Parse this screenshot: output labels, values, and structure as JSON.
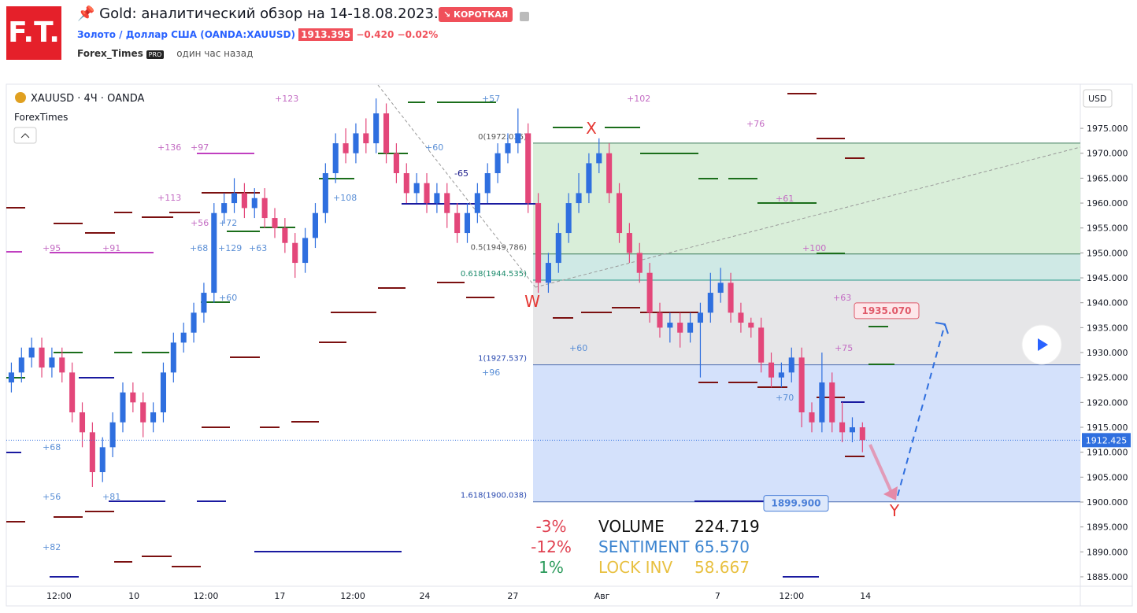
{
  "header": {
    "logo": "F.T.",
    "title": "Gold: аналитический обзор на 14-18.08.2023.",
    "badge": "↘ КОРОТКАЯ",
    "symbol_name": "Золото / Доллар США",
    "symbol_code": "(OANDA:XAUUSD)",
    "price": "1913.395",
    "change": "−0.420",
    "change_pct": "−0.02%",
    "author": "Forex_Times",
    "author_badge": "PRO",
    "time": "один час назад"
  },
  "chart_data": {
    "type": "candlestick",
    "legend": "XAUUSD · 4Ч · OANDA",
    "indicator": "ForexTimes",
    "currency": "USD",
    "up_color": "#2f6fdf",
    "down_color": "#e3477a",
    "candles": [
      [
        1924,
        1928,
        1922,
        1926
      ],
      [
        1926,
        1931,
        1924,
        1929
      ],
      [
        1929,
        1933,
        1927,
        1931
      ],
      [
        1931,
        1933,
        1925,
        1927
      ],
      [
        1927,
        1931,
        1925,
        1929
      ],
      [
        1929,
        1931,
        1924,
        1926
      ],
      [
        1926,
        1928,
        1916,
        1918
      ],
      [
        1918,
        1920,
        1911,
        1914
      ],
      [
        1914,
        1916,
        1903,
        1906
      ],
      [
        1906,
        1913,
        1904,
        1911
      ],
      [
        1911,
        1918,
        1909,
        1916
      ],
      [
        1916,
        1924,
        1914,
        1922
      ],
      [
        1922,
        1924,
        1918,
        1920
      ],
      [
        1920,
        1922,
        1913,
        1916
      ],
      [
        1916,
        1920,
        1914,
        1918
      ],
      [
        1918,
        1928,
        1916,
        1926
      ],
      [
        1926,
        1934,
        1924,
        1932
      ],
      [
        1932,
        1936,
        1930,
        1934
      ],
      [
        1934,
        1940,
        1932,
        1938
      ],
      [
        1938,
        1944,
        1936,
        1942
      ],
      [
        1942,
        1960,
        1940,
        1958
      ],
      [
        1958,
        1962,
        1956,
        1960
      ],
      [
        1960,
        1965,
        1958,
        1962
      ],
      [
        1962,
        1964,
        1957,
        1959
      ],
      [
        1959,
        1963,
        1957,
        1961
      ],
      [
        1961,
        1963,
        1955,
        1957
      ],
      [
        1957,
        1959,
        1953,
        1955
      ],
      [
        1955,
        1957,
        1950,
        1952
      ],
      [
        1952,
        1954,
        1945,
        1948
      ],
      [
        1948,
        1955,
        1946,
        1953
      ],
      [
        1953,
        1960,
        1951,
        1958
      ],
      [
        1958,
        1968,
        1956,
        1966
      ],
      [
        1966,
        1974,
        1964,
        1972
      ],
      [
        1972,
        1975,
        1968,
        1970
      ],
      [
        1970,
        1976,
        1968,
        1974
      ],
      [
        1974,
        1977,
        1970,
        1972
      ],
      [
        1972,
        1981,
        1970,
        1978
      ],
      [
        1978,
        1980,
        1968,
        1970
      ],
      [
        1970,
        1972,
        1964,
        1966
      ],
      [
        1966,
        1968,
        1960,
        1962
      ],
      [
        1962,
        1966,
        1960,
        1964
      ],
      [
        1964,
        1966,
        1958,
        1960
      ],
      [
        1960,
        1964,
        1958,
        1962
      ],
      [
        1962,
        1964,
        1955,
        1958
      ],
      [
        1958,
        1960,
        1952,
        1954
      ],
      [
        1954,
        1960,
        1952,
        1958
      ],
      [
        1958,
        1964,
        1956,
        1962
      ],
      [
        1962,
        1968,
        1960,
        1966
      ],
      [
        1966,
        1972,
        1964,
        1970
      ],
      [
        1970,
        1974,
        1968,
        1972
      ],
      [
        1972,
        1979,
        1970,
        1974
      ],
      [
        1974,
        1976,
        1958,
        1960
      ],
      [
        1960,
        1962,
        1942,
        1944
      ],
      [
        1944,
        1950,
        1942,
        1948
      ],
      [
        1948,
        1956,
        1946,
        1954
      ],
      [
        1954,
        1962,
        1952,
        1960
      ],
      [
        1960,
        1966,
        1958,
        1962
      ],
      [
        1962,
        1970,
        1960,
        1968
      ],
      [
        1968,
        1973,
        1966,
        1970
      ],
      [
        1970,
        1972,
        1960,
        1962
      ],
      [
        1962,
        1964,
        1952,
        1954
      ],
      [
        1954,
        1956,
        1948,
        1950
      ],
      [
        1950,
        1952,
        1944,
        1946
      ],
      [
        1946,
        1948,
        1936,
        1938
      ],
      [
        1938,
        1940,
        1933,
        1935
      ],
      [
        1935,
        1938,
        1932,
        1936
      ],
      [
        1936,
        1938,
        1931,
        1934
      ],
      [
        1934,
        1938,
        1932,
        1936
      ],
      [
        1936,
        1940,
        1925,
        1938
      ],
      [
        1938,
        1946,
        1936,
        1942
      ],
      [
        1942,
        1947,
        1940,
        1944
      ],
      [
        1944,
        1946,
        1936,
        1938
      ],
      [
        1938,
        1940,
        1934,
        1936
      ],
      [
        1936,
        1937,
        1933,
        1935
      ],
      [
        1935,
        1937,
        1926,
        1928
      ],
      [
        1928,
        1930,
        1923,
        1925
      ],
      [
        1925,
        1928,
        1923,
        1926
      ],
      [
        1926,
        1931,
        1924,
        1929
      ],
      [
        1929,
        1931,
        1915,
        1918
      ],
      [
        1918,
        1920,
        1914,
        1916
      ],
      [
        1916,
        1930,
        1914,
        1924
      ],
      [
        1924,
        1926,
        1914,
        1916
      ],
      [
        1916,
        1920,
        1912,
        1914
      ],
      [
        1914,
        1917,
        1912,
        1915
      ],
      [
        1915,
        1916,
        1910,
        1912.425
      ]
    ],
    "xlim": [
      -0.5,
      105.5
    ],
    "xticks": [
      {
        "value": 4.7,
        "label": "12:00"
      },
      {
        "value": 12.1,
        "label": "10"
      },
      {
        "value": 19.2,
        "label": "12:00"
      },
      {
        "value": 26.5,
        "label": "17"
      },
      {
        "value": 33.7,
        "label": "12:00"
      },
      {
        "value": 40.8,
        "label": "24"
      },
      {
        "value": 49.5,
        "label": "27"
      },
      {
        "value": 58.3,
        "label": "Авг"
      },
      {
        "value": 69.7,
        "label": "7"
      },
      {
        "value": 77,
        "label": "12:00"
      },
      {
        "value": 84.3,
        "label": "14"
      }
    ],
    "ylim": [
      1883.1,
      1983.7
    ],
    "yticks": [
      {
        "value": 1885,
        "label": "1885.000"
      },
      {
        "value": 1890,
        "label": "1890.000"
      },
      {
        "value": 1895,
        "label": "1895.000"
      },
      {
        "value": 1900,
        "label": "1900.000"
      },
      {
        "value": 1905,
        "label": "1905.000"
      },
      {
        "value": 1910,
        "label": "1910.000"
      },
      {
        "value": 1915,
        "label": "1915.000"
      },
      {
        "value": 1920,
        "label": "1920.000"
      },
      {
        "value": 1925,
        "label": "1925.000"
      },
      {
        "value": 1930,
        "label": "1930.000"
      },
      {
        "value": 1935,
        "label": "1935.000"
      },
      {
        "value": 1940,
        "label": "1940.000"
      },
      {
        "value": 1945,
        "label": "1945.000"
      },
      {
        "value": 1950,
        "label": "1950.000"
      },
      {
        "value": 1955,
        "label": "1955.000"
      },
      {
        "value": 1960,
        "label": "1960.000"
      },
      {
        "value": 1965,
        "label": "1965.000"
      },
      {
        "value": 1970,
        "label": "1970.000"
      },
      {
        "value": 1975,
        "label": "1975.000"
      }
    ],
    "last_price": 1912.425,
    "fib_levels": [
      {
        "value": 1972.035,
        "label": "0(1972.035)"
      },
      {
        "value": 1949.786,
        "label": "0.5(1949.786)"
      },
      {
        "value": 1944.535,
        "label": "0.618(1944.535)"
      },
      {
        "value": 1927.537,
        "label": "1(1927.537)"
      },
      {
        "value": 1900.038,
        "label": "1.618(1900.038)"
      }
    ],
    "fib_fills": [
      "#d9eed9",
      "#cfe9e5",
      "#e6e6e8",
      "#d4e1fb"
    ],
    "price_labels": [
      {
        "value": 1935.07,
        "label": "1935.070",
        "color": "#e05a6a"
      },
      {
        "value": 1899.9,
        "label": "1899.900",
        "color": "#4a7fd8"
      }
    ],
    "pattern_labels": [
      "W",
      "X",
      "Y"
    ],
    "annotations": [
      {
        "text": "+123",
        "color": "#c36bc3"
      },
      {
        "text": "+136",
        "color": "#c36bc3"
      },
      {
        "text": "+97",
        "color": "#c36bc3"
      },
      {
        "text": "+113",
        "color": "#c36bc3"
      },
      {
        "text": "+56",
        "color": "#c36bc3"
      },
      {
        "text": "+95",
        "color": "#c36bc3"
      },
      {
        "text": "+91",
        "color": "#c36bc3"
      },
      {
        "text": "+68",
        "color": "#5b8fd6"
      },
      {
        "text": "+129",
        "color": "#5b8fd6"
      },
      {
        "text": "+63",
        "color": "#5b8fd6"
      },
      {
        "text": "+72",
        "color": "#5b8fd6"
      },
      {
        "text": "+108",
        "color": "#5b8fd6"
      },
      {
        "text": "+60",
        "color": "#5b8fd6"
      },
      {
        "text": "+57",
        "color": "#5b8fd6"
      },
      {
        "text": "-65",
        "color": "#1a1a8a"
      },
      {
        "text": "+102",
        "color": "#c36bc3"
      },
      {
        "text": "+76",
        "color": "#c36bc3"
      },
      {
        "text": "+61",
        "color": "#c36bc3"
      },
      {
        "text": "+100",
        "color": "#c36bc3"
      },
      {
        "text": "+63",
        "color": "#c36bc3"
      },
      {
        "text": "+75",
        "color": "#c36bc3"
      },
      {
        "text": "+60",
        "color": "#5b8fd6"
      },
      {
        "text": "+96",
        "color": "#5b8fd6"
      },
      {
        "text": "+70",
        "color": "#5b8fd6"
      },
      {
        "text": "+68",
        "color": "#5b8fd6"
      },
      {
        "text": "+56",
        "color": "#5b8fd6"
      },
      {
        "text": "+81",
        "color": "#5b8fd6"
      },
      {
        "text": "+82",
        "color": "#5b8fd6"
      },
      {
        "text": "+60",
        "color": "#5b8fd6"
      }
    ],
    "stats": [
      {
        "change": "-3%",
        "name": "VOLUME",
        "value": "224.719",
        "change_color": "#e04050",
        "color": "#111111"
      },
      {
        "change": "-12%",
        "name": "SENTIMENT",
        "value": "65.570",
        "change_color": "#e04050",
        "color": "#3b84d0"
      },
      {
        "change": "1%",
        "name": "LOCK INV",
        "value": "58.667",
        "change_color": "#2a9a5a",
        "color": "#e8c040"
      }
    ]
  }
}
